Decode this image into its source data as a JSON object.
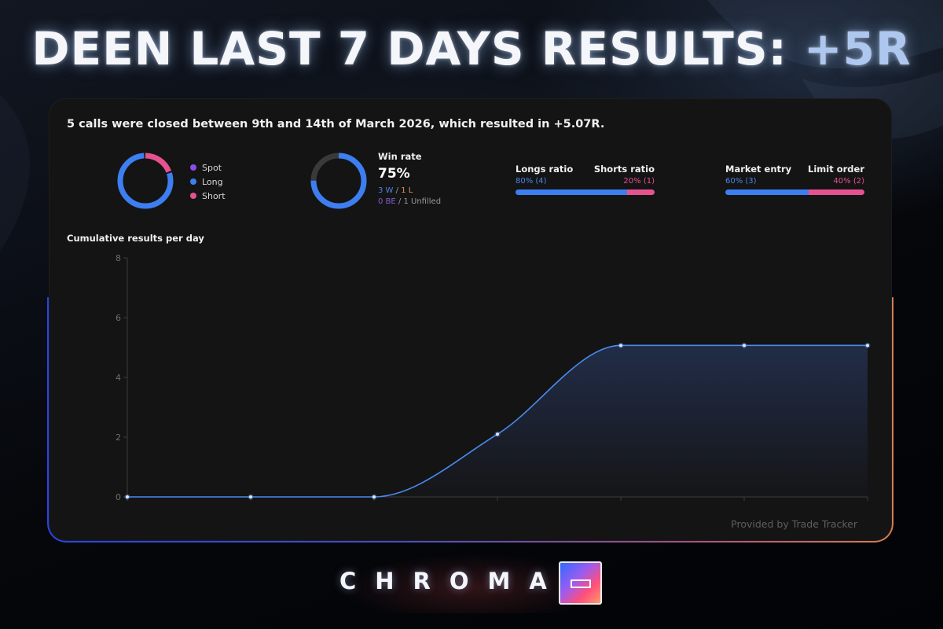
{
  "headline": {
    "main": "DEEN LAST 7 DAYS RESULTS:",
    "accent": "+5R"
  },
  "summary": "5 calls were closed between 9th and 14th of March 2026, which resulted in +5.07R.",
  "type_breakdown": {
    "legend": [
      {
        "label": "Spot",
        "color": "#8a4fe6",
        "value": 0
      },
      {
        "label": "Long",
        "color": "#3d7ef0",
        "value": 80
      },
      {
        "label": "Short",
        "color": "#e5528f",
        "value": 20
      }
    ]
  },
  "win_rate": {
    "label": "Win rate",
    "value": "75%",
    "fraction": 0.75,
    "wins": "3 W",
    "losses": "1 L",
    "breakeven": "0 BE",
    "unfilled": "1 Unfilled",
    "sep": "/"
  },
  "long_short": {
    "left_label": "Longs ratio",
    "right_label": "Shorts ratio",
    "left_value": "80% (4)",
    "right_value": "20% (1)",
    "left_pct": 80
  },
  "entry_type": {
    "left_label": "Market entry",
    "right_label": "Limit order",
    "left_value": "60% (3)",
    "right_value": "40% (2)",
    "left_pct": 60
  },
  "colors": {
    "blue": "#3d7ef0",
    "pink": "#e5528f",
    "purple": "#8a4fe6",
    "orange": "#e58a5c",
    "ring_track": "#3a3a3a"
  },
  "chart_data": {
    "type": "area",
    "title": "Cumulative results per day",
    "x": [
      0,
      1,
      2,
      3,
      4,
      5,
      6
    ],
    "values": [
      0,
      0,
      0,
      2.1,
      5.07,
      5.07,
      5.07
    ],
    "ylim": [
      0,
      8
    ],
    "yticks": [
      0,
      2,
      4,
      6,
      8
    ],
    "grid": false,
    "line_color": "#4a8af0"
  },
  "footer": {
    "provided": "Provided by Trade Tracker"
  },
  "brand": {
    "name": "CHROMA"
  }
}
